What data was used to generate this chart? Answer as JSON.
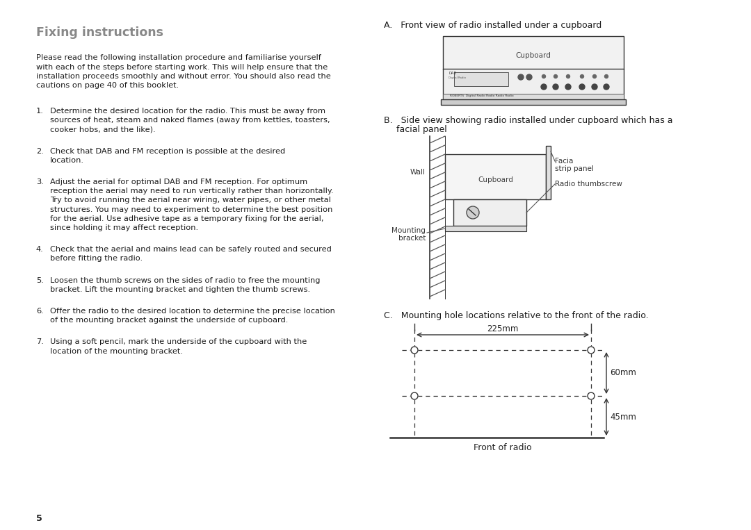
{
  "title": "Fixing instructions",
  "title_color": "#888888",
  "bg_color": "#ffffff",
  "text_color": "#1a1a1a",
  "steps": [
    [
      "Determine the desired location for the radio. This must be away from",
      "sources of heat, steam and naked flames (away from kettles, toasters,",
      "cooker hobs, and the like)."
    ],
    [
      "Check that DAB and FM reception is possible at the desired",
      "location."
    ],
    [
      "Adjust the aerial for optimal DAB and FM reception. For optimum",
      "reception the aerial may need to run vertically rather than horizontally.",
      "Try to avoid running the aerial near wiring, water pipes, or other metal",
      "structures. You may need to experiment to determine the best position",
      "for the aerial. Use adhesive tape as a temporary fixing for the aerial,",
      "since holding it may affect reception."
    ],
    [
      "Check that the aerial and mains lead can be safely routed and secured",
      "before fitting the radio."
    ],
    [
      "Loosen the thumb screws on the sides of radio to free the mounting",
      "bracket. Lift the mounting bracket and tighten the thumb screws."
    ],
    [
      "Offer the radio to the desired location to determine the precise location",
      "of the mounting bracket against the underside of cupboard."
    ],
    [
      "Using a soft pencil, mark the underside of the cupboard with the",
      "location of the mounting bracket."
    ]
  ],
  "intro_lines": [
    "Please read the following installation procedure and familiarise yourself",
    "with each of the steps before starting work. This will help ensure that the",
    "installation proceeds smoothly and without error. You should also read the",
    "cautions on page 40 of this booklet."
  ],
  "page_num": "5"
}
